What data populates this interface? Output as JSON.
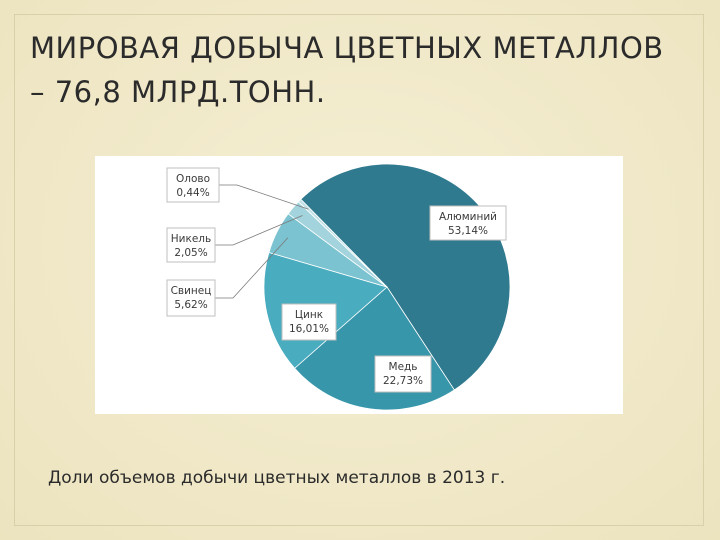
{
  "slide": {
    "title_line1": "МИРОВАЯ ДОБЫЧА ЦВЕТНЫХ МЕТАЛЛОВ",
    "title_line2": "– 76,8 МЛРД.ТОНН.",
    "caption": "Доли объемов добычи цветных металлов в 2013 г."
  },
  "chart_data": {
    "type": "pie",
    "title": "",
    "slices": [
      {
        "label": "Алюминий",
        "value_text": "53,14%",
        "value": 53.14,
        "color": "#2f7a8f"
      },
      {
        "label": "Медь",
        "value_text": "22,73%",
        "value": 22.73,
        "color": "#3896ab"
      },
      {
        "label": "Цинк",
        "value_text": "16,01%",
        "value": 16.01,
        "color": "#4aacbf"
      },
      {
        "label": "Свинец",
        "value_text": "5,62%",
        "value": 5.62,
        "color": "#7bc3d0"
      },
      {
        "label": "Никель",
        "value_text": "2,05%",
        "value": 2.05,
        "color": "#a3d3dc"
      },
      {
        "label": "Олово",
        "value_text": "0,44%",
        "value": 0.44,
        "color": "#c3e2e8"
      }
    ]
  }
}
